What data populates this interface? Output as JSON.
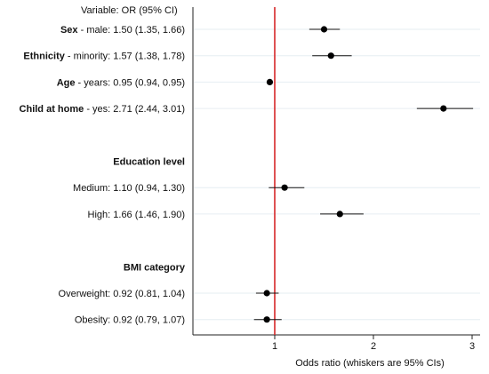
{
  "chart_data": {
    "type": "scatter",
    "subtype": "forest-plot",
    "header": "Variable: OR (95% CI)",
    "xlabel": "Odds ratio (whiskers are 95% CIs)",
    "xlim": [
      0.0,
      3.1
    ],
    "xticks": [
      "1",
      "2",
      "3"
    ],
    "reference_line": {
      "x": 1,
      "color": "#d62728"
    },
    "grid": false,
    "rows": [
      {
        "type": "item",
        "bold": "Sex",
        "rest": " - male: 1.50 (1.35, 1.66)",
        "or": 1.5,
        "lo": 1.35,
        "hi": 1.66
      },
      {
        "type": "item",
        "bold": "Ethnicity",
        "rest": " - minority: 1.57 (1.38, 1.78)",
        "or": 1.57,
        "lo": 1.38,
        "hi": 1.78
      },
      {
        "type": "item",
        "bold": "Age",
        "rest": " - years: 0.95 (0.94, 0.95)",
        "or": 0.95,
        "lo": 0.94,
        "hi": 0.95
      },
      {
        "type": "item",
        "bold": "Child at home",
        "rest": " - yes: 2.71 (2.44, 3.01)",
        "or": 2.71,
        "lo": 2.44,
        "hi": 3.01
      },
      {
        "type": "blank"
      },
      {
        "type": "heading",
        "bold": "Education level",
        "rest": ""
      },
      {
        "type": "item",
        "bold": "",
        "rest": "Medium: 1.10 (0.94, 1.30)",
        "or": 1.1,
        "lo": 0.94,
        "hi": 1.3
      },
      {
        "type": "item",
        "bold": "",
        "rest": "High: 1.66 (1.46, 1.90)",
        "or": 1.66,
        "lo": 1.46,
        "hi": 1.9
      },
      {
        "type": "blank"
      },
      {
        "type": "heading",
        "bold": "BMI category",
        "rest": ""
      },
      {
        "type": "item",
        "bold": "",
        "rest": "Overweight: 0.92 (0.81, 1.04)",
        "or": 0.92,
        "lo": 0.81,
        "hi": 1.04
      },
      {
        "type": "item",
        "bold": "",
        "rest": "Obesity: 0.92 (0.79, 1.07)",
        "or": 0.92,
        "lo": 0.79,
        "hi": 1.07
      }
    ]
  }
}
